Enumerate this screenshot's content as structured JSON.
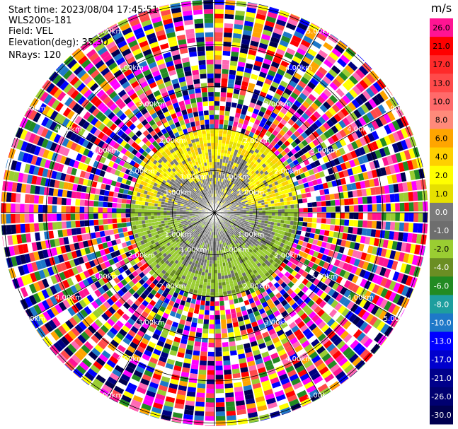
{
  "info": {
    "start_time": "Start time: 2023/08/04 17:45:51",
    "station": "WLS200s-181",
    "field": "Field: VEL",
    "elevation": "Elevation(deg): 35.30",
    "nrays": "NRays: 120"
  },
  "chart_data": {
    "type": "heatmap",
    "projection": "polar (PPI scan)",
    "unit": "m/s",
    "colorbar": {
      "label": "m/s",
      "ticks": [
        "26.0",
        "21.0",
        "17.0",
        "13.0",
        "10.0",
        "8.0",
        "6.0",
        "4.0",
        "2.0",
        "1.0",
        "0.0",
        "-1.0",
        "-2.0",
        "-4.0",
        "-6.0",
        "-8.0",
        "-10.0",
        "-13.0",
        "-17.0",
        "-21.0",
        "-26.0",
        "-30.0"
      ],
      "colors": [
        "#ff1493",
        "#ff0000",
        "#ff2a2a",
        "#ff4a4a",
        "#ff6a6a",
        "#ff8a7a",
        "#ffa500",
        "#ffd000",
        "#ffff00",
        "#e6e000",
        "#7a7a7a",
        "#6e6e6e",
        "#9acd32",
        "#6b8e23",
        "#228b22",
        "#1e9e9e",
        "#1e78c8",
        "#0000ff",
        "#0000cd",
        "#00008b",
        "#000070",
        "#000050"
      ]
    },
    "range_rings_km": [
      "1.00km",
      "2.00km",
      "3.00km",
      "4.00km",
      "5.00km"
    ],
    "range_labels": [
      {
        "ring": "1.00km",
        "text": "1.00km"
      },
      {
        "ring": "2.00km",
        "text": "2.00km"
      },
      {
        "ring": "3.00km",
        "text": "3.00km"
      },
      {
        "ring": "4.00km",
        "text": "4.00km"
      },
      {
        "ring": "5.00km",
        "text": "5.00km"
      }
    ],
    "regions": [
      {
        "range_km": "0-2 (north half)",
        "dominant": "yellow, 1.0 to 4.0 m/s"
      },
      {
        "range_km": "0-2 (south half)",
        "dominant": "green, -1.0 to -4.0 m/s"
      },
      {
        "range_km": "0-1.3 (center)",
        "dominant": "grey, about 0.0 m/s"
      },
      {
        "range_km": "2-5",
        "dominant": "noise, all colors"
      }
    ]
  }
}
